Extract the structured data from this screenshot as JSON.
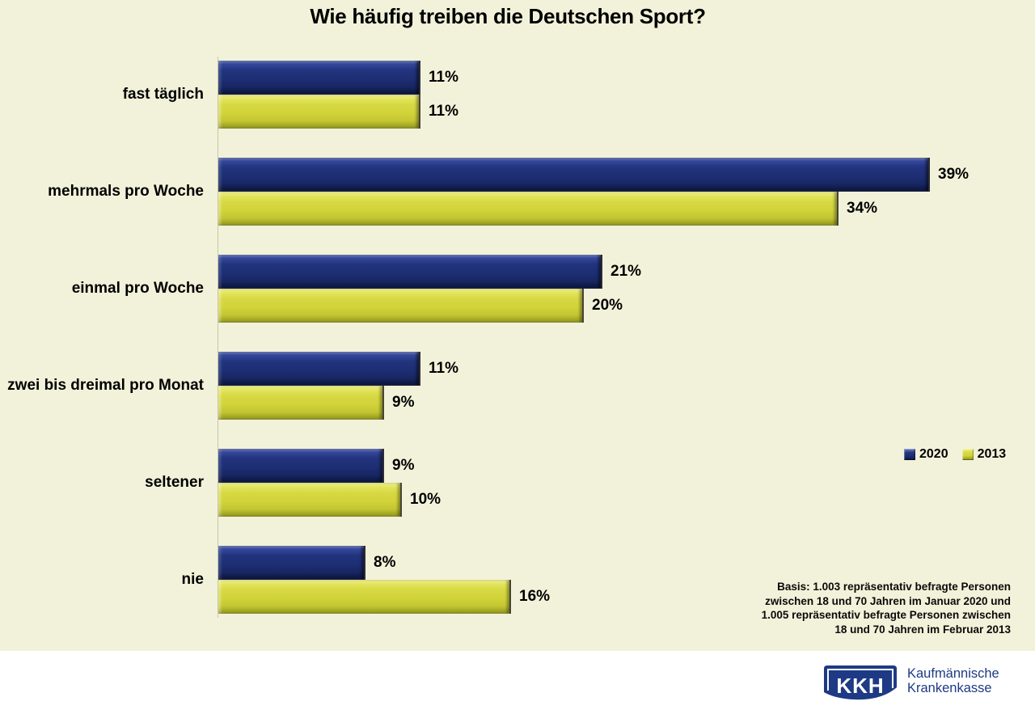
{
  "title": "Wie häufig treiben die Deutschen Sport?",
  "chart_data": {
    "type": "bar",
    "orientation": "horizontal",
    "title": "Wie häufig treiben die Deutschen Sport?",
    "categories": [
      "fast täglich",
      "mehrmals pro Woche",
      "einmal pro Woche",
      "zwei bis dreimal pro Monat",
      "seltener",
      "nie"
    ],
    "series": [
      {
        "name": "2020",
        "color": "#1e2e74",
        "values": [
          11,
          39,
          21,
          11,
          9,
          8
        ]
      },
      {
        "name": "2013",
        "color": "#d2d33a",
        "values": [
          11,
          34,
          20,
          9,
          10,
          16
        ]
      }
    ],
    "value_suffix": "%",
    "xlim": [
      0,
      40
    ],
    "grid": false,
    "data_labels": true,
    "legend_position": "middle-right",
    "background": "#f2f2da"
  },
  "legend": {
    "items": [
      {
        "label": "2020",
        "color": "#1e2e74"
      },
      {
        "label": "2013",
        "color": "#d2d33a"
      }
    ]
  },
  "footnote": {
    "lines": [
      "Basis: 1.003 repräsentativ befragte Personen",
      "zwischen 18 und 70 Jahren im Januar 2020 und",
      "1.005 repräsentativ befragte Personen zwischen",
      "18 und 70 Jahren im Februar 2013"
    ]
  },
  "logo": {
    "acronym": "KKH",
    "name_line1": "Kaufmännische",
    "name_line2": "Krankenkasse",
    "brand_color": "#1e3a85"
  }
}
